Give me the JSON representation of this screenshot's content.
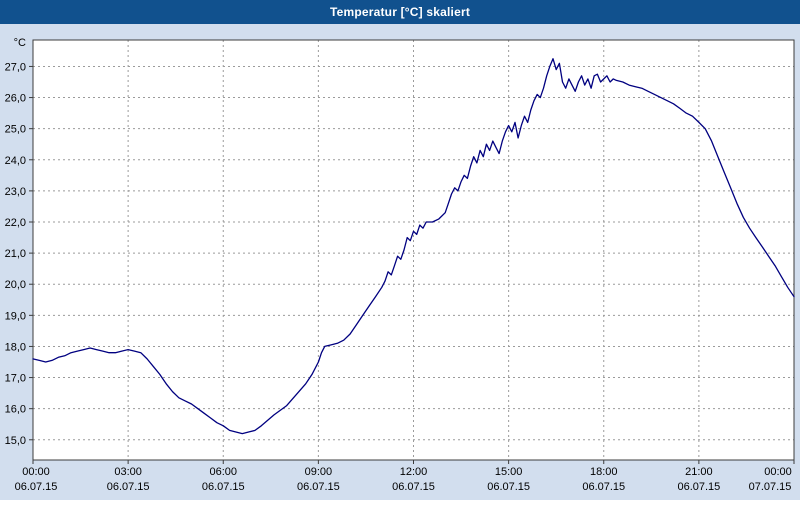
{
  "titlebar": {
    "title": "Temperatur [°C] skaliert"
  },
  "chart_data": {
    "type": "line",
    "title": "Temperatur [°C] skaliert",
    "ylabel": "°C",
    "xlabel": "",
    "ylim": [
      15.0,
      27.0
    ],
    "x_range_hours": [
      0,
      24
    ],
    "grid": true,
    "legend_position": "none",
    "colors": {
      "line": "#000080",
      "grid": "#9b9b9b",
      "axis": "#3c3c3c",
      "text": "#000000",
      "plot_bg": "#ffffff",
      "window_bg": "#d2deee",
      "titlebar_bg": "#11518e",
      "title_text": "#ffffff"
    },
    "ytick_values": [
      27,
      26,
      25,
      24,
      23,
      22,
      21,
      20,
      19,
      18,
      17,
      16,
      15
    ],
    "ytick_labels": [
      "27,0",
      "26,0",
      "25,0",
      "24,0",
      "23,0",
      "22,0",
      "21,0",
      "20,0",
      "19,0",
      "18,0",
      "17,0",
      "16,0",
      "15,0"
    ],
    "xticks": [
      {
        "h": 0,
        "time": "00:00",
        "date": "06.07.15"
      },
      {
        "h": 3,
        "time": "03:00",
        "date": "06.07.15"
      },
      {
        "h": 6,
        "time": "06:00",
        "date": "06.07.15"
      },
      {
        "h": 9,
        "time": "09:00",
        "date": "06.07.15"
      },
      {
        "h": 12,
        "time": "12:00",
        "date": "06.07.15"
      },
      {
        "h": 15,
        "time": "15:00",
        "date": "06.07.15"
      },
      {
        "h": 18,
        "time": "18:00",
        "date": "06.07.15"
      },
      {
        "h": 21,
        "time": "21:00",
        "date": "06.07.15"
      },
      {
        "h": 24,
        "time": "00:00",
        "date": "07.07.15"
      }
    ],
    "series": [
      {
        "name": "Temperatur",
        "x": [
          0.0,
          0.2,
          0.4,
          0.6,
          0.8,
          1.0,
          1.2,
          1.4,
          1.6,
          1.8,
          2.0,
          2.2,
          2.4,
          2.6,
          2.8,
          3.0,
          3.2,
          3.4,
          3.6,
          3.8,
          4.0,
          4.2,
          4.4,
          4.6,
          4.8,
          5.0,
          5.2,
          5.4,
          5.6,
          5.8,
          6.0,
          6.2,
          6.4,
          6.6,
          6.8,
          7.0,
          7.2,
          7.6,
          8.0,
          8.3,
          8.6,
          8.8,
          9.0,
          9.1,
          9.2,
          9.4,
          9.6,
          9.8,
          10.0,
          10.2,
          10.4,
          10.6,
          10.8,
          11.0,
          11.1,
          11.2,
          11.3,
          11.4,
          11.5,
          11.6,
          11.7,
          11.8,
          11.9,
          12.0,
          12.1,
          12.2,
          12.3,
          12.4,
          12.6,
          12.8,
          13.0,
          13.1,
          13.2,
          13.3,
          13.4,
          13.5,
          13.6,
          13.7,
          13.8,
          13.9,
          14.0,
          14.1,
          14.2,
          14.3,
          14.4,
          14.5,
          14.6,
          14.7,
          14.8,
          14.9,
          15.0,
          15.1,
          15.2,
          15.3,
          15.4,
          15.5,
          15.6,
          15.7,
          15.8,
          15.9,
          16.0,
          16.1,
          16.2,
          16.3,
          16.4,
          16.5,
          16.6,
          16.7,
          16.8,
          16.9,
          17.0,
          17.1,
          17.2,
          17.3,
          17.4,
          17.5,
          17.6,
          17.7,
          17.8,
          17.9,
          18.0,
          18.1,
          18.2,
          18.3,
          18.4,
          18.6,
          18.8,
          19.0,
          19.2,
          19.4,
          19.6,
          19.8,
          20.0,
          20.2,
          20.4,
          20.6,
          20.8,
          21.0,
          21.2,
          21.4,
          21.6,
          21.8,
          22.0,
          22.2,
          22.4,
          22.6,
          22.8,
          23.0,
          23.2,
          23.4,
          23.6,
          23.8,
          24.0
        ],
        "y": [
          17.6,
          17.55,
          17.5,
          17.55,
          17.65,
          17.7,
          17.8,
          17.85,
          17.9,
          17.95,
          17.9,
          17.85,
          17.8,
          17.8,
          17.85,
          17.9,
          17.85,
          17.8,
          17.6,
          17.35,
          17.1,
          16.8,
          16.55,
          16.35,
          16.25,
          16.15,
          16.0,
          15.85,
          15.7,
          15.55,
          15.45,
          15.3,
          15.25,
          15.2,
          15.25,
          15.3,
          15.45,
          15.8,
          16.1,
          16.45,
          16.8,
          17.1,
          17.5,
          17.8,
          18.0,
          18.05,
          18.1,
          18.2,
          18.4,
          18.7,
          19.0,
          19.3,
          19.6,
          19.9,
          20.1,
          20.4,
          20.3,
          20.6,
          20.9,
          20.8,
          21.1,
          21.5,
          21.4,
          21.7,
          21.6,
          21.9,
          21.8,
          22.0,
          22.0,
          22.1,
          22.3,
          22.6,
          22.9,
          23.1,
          23.0,
          23.3,
          23.5,
          23.4,
          23.8,
          24.1,
          23.9,
          24.3,
          24.1,
          24.5,
          24.3,
          24.6,
          24.4,
          24.2,
          24.6,
          24.9,
          25.1,
          24.9,
          25.2,
          24.7,
          25.1,
          25.4,
          25.2,
          25.6,
          25.9,
          26.1,
          26.0,
          26.3,
          26.7,
          27.0,
          27.25,
          26.9,
          27.1,
          26.5,
          26.3,
          26.6,
          26.4,
          26.2,
          26.5,
          26.7,
          26.4,
          26.6,
          26.3,
          26.7,
          26.75,
          26.5,
          26.6,
          26.7,
          26.5,
          26.6,
          26.55,
          26.5,
          26.4,
          26.35,
          26.3,
          26.2,
          26.1,
          26.0,
          25.9,
          25.8,
          25.65,
          25.5,
          25.4,
          25.2,
          25.0,
          24.6,
          24.1,
          23.6,
          23.1,
          22.6,
          22.15,
          21.8,
          21.5,
          21.2,
          20.9,
          20.6,
          20.25,
          19.9,
          19.6
        ]
      }
    ]
  }
}
